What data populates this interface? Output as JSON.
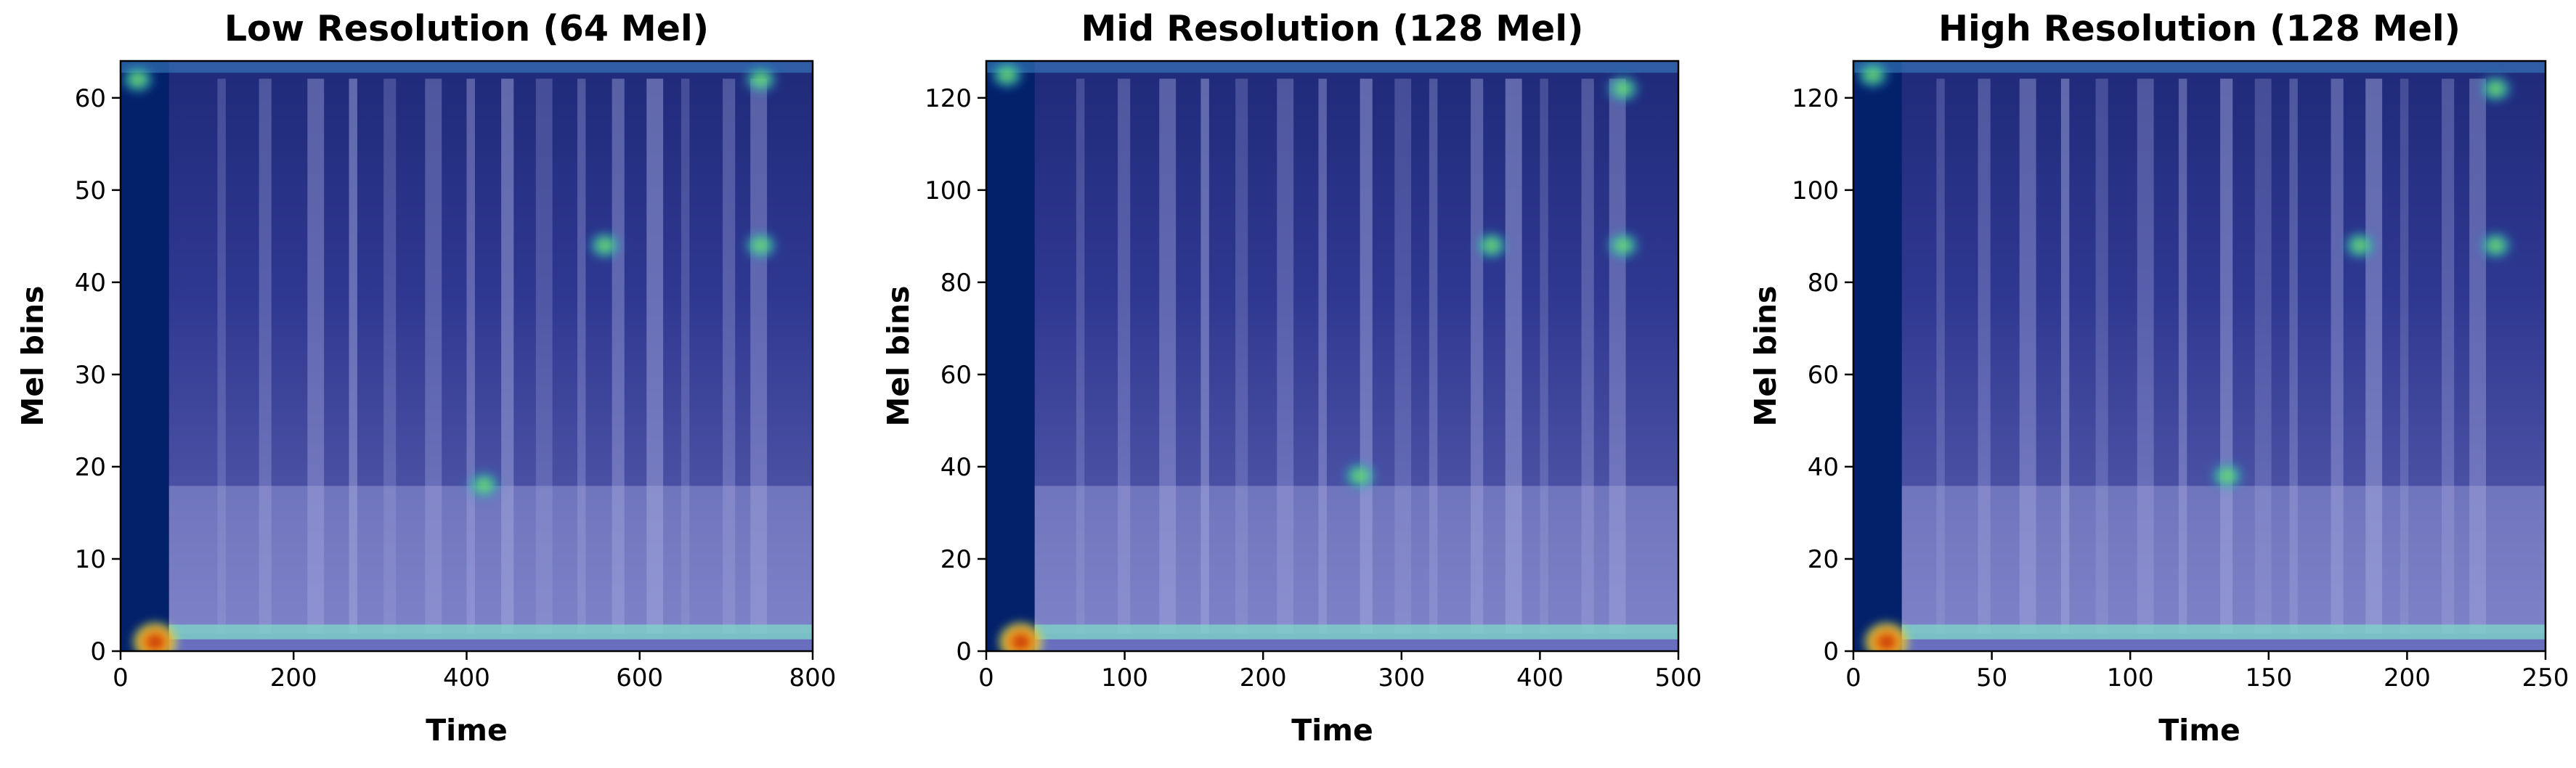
{
  "chart_data": [
    {
      "type": "heatmap",
      "title": "Low Resolution (64 Mel)",
      "xlabel": "Time",
      "ylabel": "Mel bins",
      "xlim": [
        0,
        800
      ],
      "ylim": [
        0,
        64
      ],
      "xticks": [
        0,
        200,
        400,
        600,
        800
      ],
      "yticks": [
        0,
        10,
        20,
        30,
        40,
        50,
        60
      ],
      "colormap": "jet overlaid on spectrogram",
      "grid": false,
      "hotspots": [
        {
          "x": 40,
          "y": 1,
          "level": "high"
        },
        {
          "x": 20,
          "y": 62,
          "level": "medium"
        },
        {
          "x": 740,
          "y": 44,
          "level": "medium"
        },
        {
          "x": 740,
          "y": 62,
          "level": "medium"
        },
        {
          "x": 560,
          "y": 44,
          "level": "medium"
        },
        {
          "x": 420,
          "y": 18,
          "level": "medium"
        }
      ]
    },
    {
      "type": "heatmap",
      "title": "Mid Resolution (128 Mel)",
      "xlabel": "Time",
      "ylabel": "Mel bins",
      "xlim": [
        0,
        500
      ],
      "ylim": [
        0,
        128
      ],
      "xticks": [
        0,
        100,
        200,
        300,
        400,
        500
      ],
      "yticks": [
        0,
        20,
        40,
        60,
        80,
        100,
        120
      ],
      "colormap": "jet overlaid on spectrogram",
      "grid": false,
      "hotspots": [
        {
          "x": 25,
          "y": 2,
          "level": "high"
        },
        {
          "x": 15,
          "y": 125,
          "level": "medium"
        },
        {
          "x": 460,
          "y": 88,
          "level": "medium"
        },
        {
          "x": 460,
          "y": 122,
          "level": "medium"
        },
        {
          "x": 365,
          "y": 88,
          "level": "medium"
        },
        {
          "x": 270,
          "y": 38,
          "level": "medium"
        }
      ]
    },
    {
      "type": "heatmap",
      "title": "High Resolution (128 Mel)",
      "xlabel": "Time",
      "ylabel": "Mel bins",
      "xlim": [
        0,
        250
      ],
      "ylim": [
        0,
        128
      ],
      "xticks": [
        0,
        50,
        100,
        150,
        200,
        250
      ],
      "yticks": [
        0,
        20,
        40,
        60,
        80,
        100,
        120
      ],
      "colormap": "jet overlaid on spectrogram",
      "grid": false,
      "hotspots": [
        {
          "x": 12,
          "y": 2,
          "level": "high"
        },
        {
          "x": 7,
          "y": 125,
          "level": "medium"
        },
        {
          "x": 232,
          "y": 88,
          "level": "medium"
        },
        {
          "x": 232,
          "y": 122,
          "level": "medium"
        },
        {
          "x": 183,
          "y": 88,
          "level": "medium"
        },
        {
          "x": 135,
          "y": 38,
          "level": "medium"
        }
      ]
    }
  ]
}
